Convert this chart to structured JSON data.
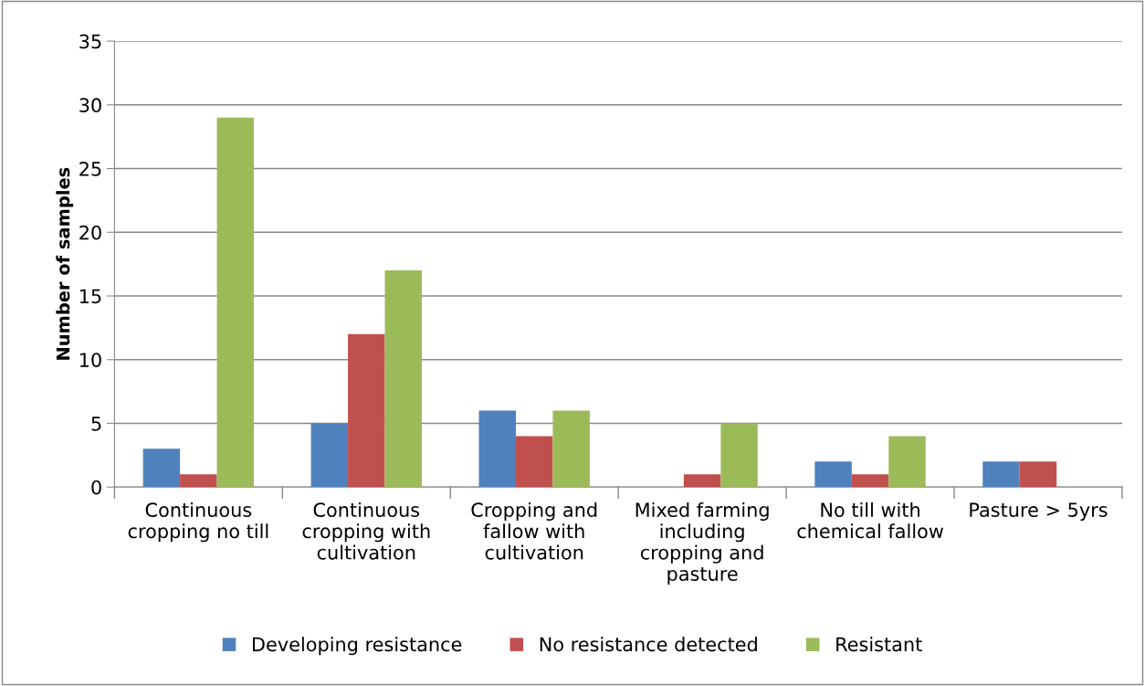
{
  "chart_data": {
    "type": "bar",
    "ylabel": "Number of samples",
    "categories": [
      "Continuous\ncropping no till",
      "Continuous\ncropping with\ncultivation",
      "Cropping and\nfallow with\ncultivation",
      "Mixed farming\nincluding\ncropping and\npasture",
      "No till with\nchemical fallow",
      "Pasture > 5yrs"
    ],
    "series": [
      {
        "name": "Developing resistance",
        "color": "#4f81bd",
        "values": [
          3,
          5,
          6,
          null,
          2,
          2
        ]
      },
      {
        "name": "No resistance detected",
        "color": "#c0504d",
        "values": [
          1,
          12,
          4,
          1,
          1,
          2
        ]
      },
      {
        "name": "Resistant",
        "color": "#9bbb59",
        "values": [
          29,
          17,
          6,
          5,
          4,
          null
        ]
      }
    ],
    "ylim": [
      0,
      35
    ],
    "yticks": [
      0,
      5,
      10,
      15,
      20,
      25,
      30,
      35
    ],
    "grid": "y",
    "legend": "bottom"
  }
}
